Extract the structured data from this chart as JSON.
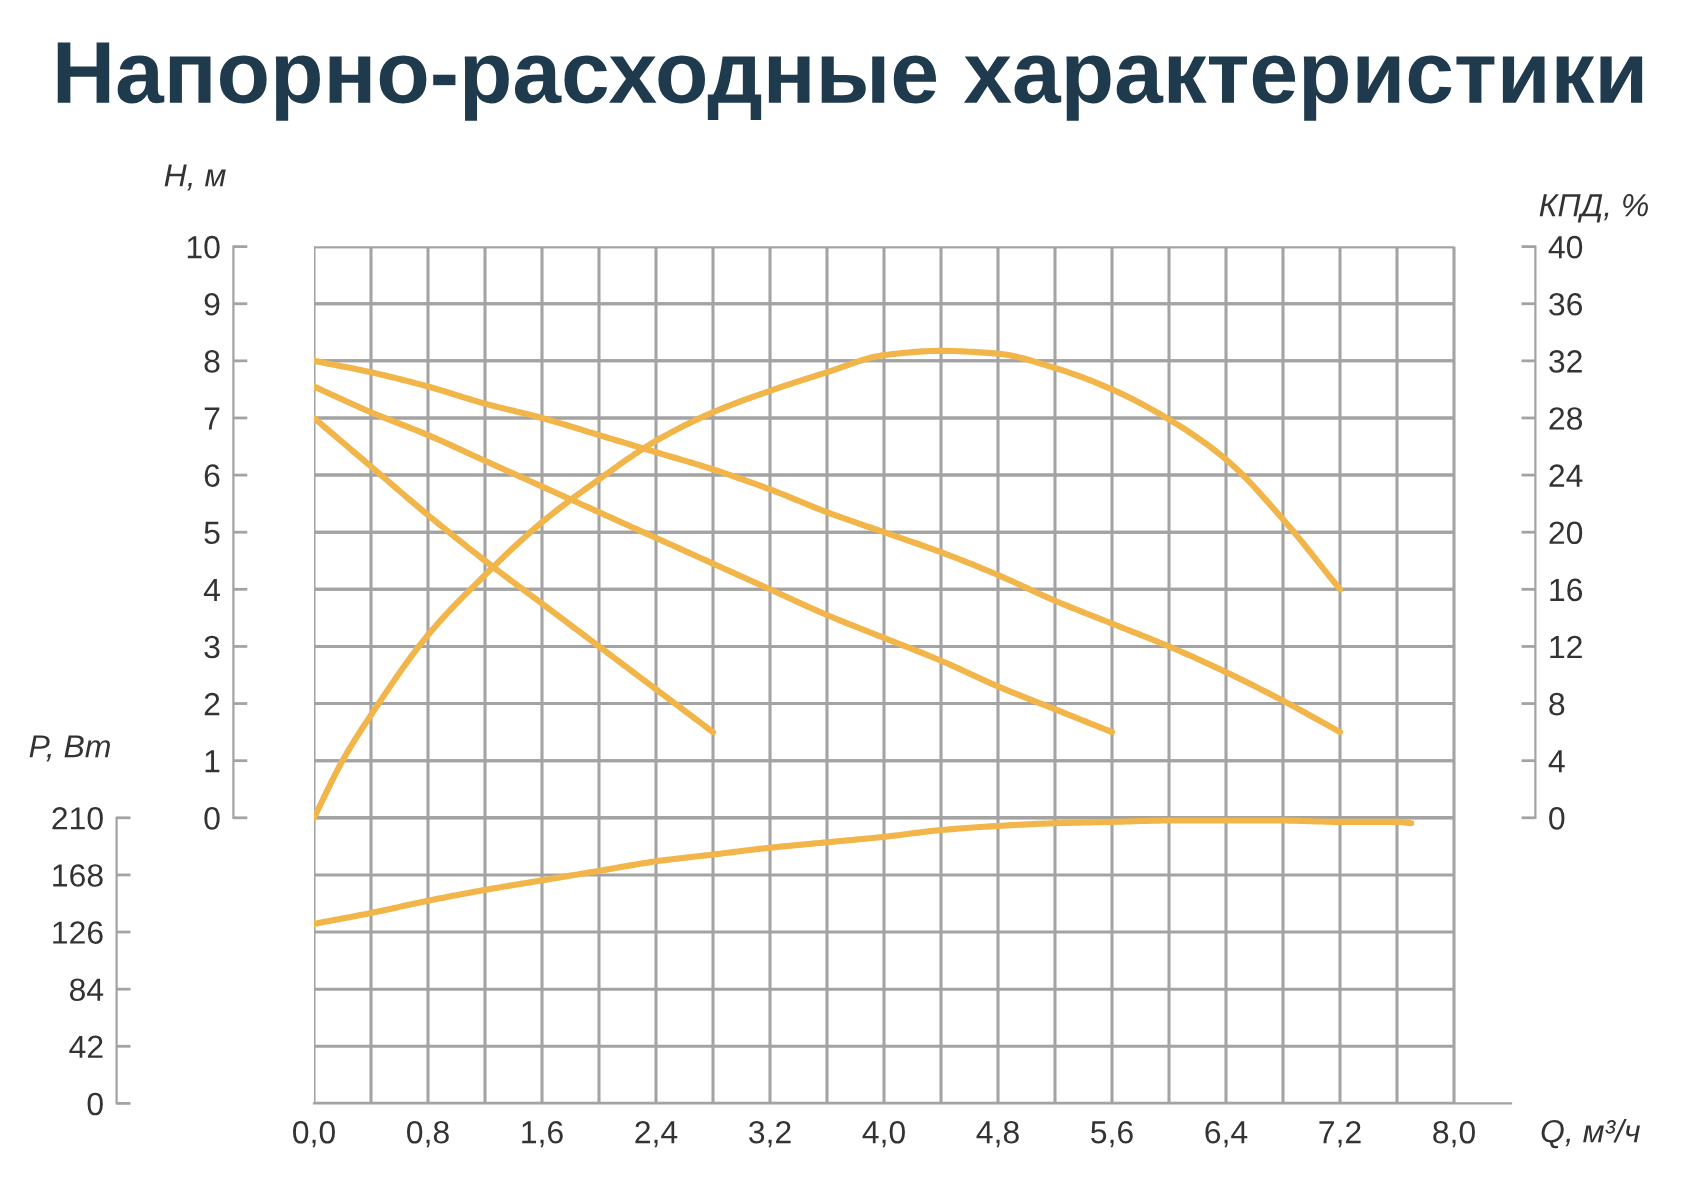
{
  "chart_data": {
    "type": "line",
    "title": "Напорно-расходные характеристики",
    "xlabel": "Q, м³/ч",
    "ylabel": "H, м",
    "y2label": "КПД, %",
    "y3label": "P, Вт",
    "xlim": [
      0,
      8.4
    ],
    "xticks": [
      {
        "value": 0,
        "label": "0,0"
      },
      {
        "value": 0.4,
        "label": null
      },
      {
        "value": 0.8,
        "label": "0,8"
      },
      {
        "value": 1.2,
        "label": null
      },
      {
        "value": 1.6,
        "label": "1,6"
      },
      {
        "value": 2.0,
        "label": null
      },
      {
        "value": 2.4,
        "label": "2,4"
      },
      {
        "value": 2.8,
        "label": null
      },
      {
        "value": 3.2,
        "label": "3,2"
      },
      {
        "value": 3.6,
        "label": null
      },
      {
        "value": 4.0,
        "label": "4,0"
      },
      {
        "value": 4.4,
        "label": null
      },
      {
        "value": 4.8,
        "label": "4,8"
      },
      {
        "value": 5.2,
        "label": null
      },
      {
        "value": 5.6,
        "label": "5,6"
      },
      {
        "value": 6.0,
        "label": null
      },
      {
        "value": 6.4,
        "label": "6,4"
      },
      {
        "value": 6.8,
        "label": null
      },
      {
        "value": 7.2,
        "label": "7,2"
      },
      {
        "value": 7.6,
        "label": null
      },
      {
        "value": 8.0,
        "label": "8,0"
      }
    ],
    "ylim": [
      -5,
      10
    ],
    "yticks": [
      0,
      1,
      2,
      3,
      4,
      5,
      6,
      7,
      8,
      9,
      10
    ],
    "y2lim": [
      -20,
      40
    ],
    "y2ticks": [
      0,
      4,
      8,
      12,
      16,
      20,
      24,
      28,
      32,
      36,
      40
    ],
    "y3lim": [
      0,
      630
    ],
    "y3ticks": [
      0,
      42,
      84,
      126,
      168,
      210
    ],
    "grid": true,
    "series": [
      {
        "color": "#f1b54a",
        "x": [
          0,
          0.4,
          0.8,
          1.2,
          1.6,
          2.0,
          2.4,
          2.8
        ],
        "values": [
          7.0,
          6.15,
          5.3,
          4.5,
          3.75,
          3.0,
          2.25,
          1.5
        ]
      },
      {
        "color": "#f1b54a",
        "x": [
          0,
          0.4,
          0.8,
          1.2,
          1.6,
          2.0,
          2.4,
          2.8,
          3.2,
          3.6,
          4.0,
          4.4,
          4.8,
          5.2,
          5.6
        ],
        "values": [
          7.55,
          7.1,
          6.7,
          6.25,
          5.8,
          5.35,
          4.9,
          4.45,
          4.0,
          3.55,
          3.15,
          2.75,
          2.3,
          1.9,
          1.5
        ]
      },
      {
        "color": "#f1b54a",
        "x": [
          0,
          0.4,
          0.8,
          1.2,
          1.6,
          2.0,
          2.4,
          2.8,
          3.2,
          3.6,
          4.0,
          4.4,
          4.8,
          5.2,
          5.6,
          6.0,
          6.4,
          6.8,
          7.2
        ],
        "values": [
          8.0,
          7.8,
          7.55,
          7.25,
          7.0,
          6.7,
          6.4,
          6.1,
          5.75,
          5.35,
          5.0,
          4.65,
          4.25,
          3.8,
          3.4,
          3.0,
          2.55,
          2.05,
          1.5
        ]
      },
      {
        "color": "#f1b54a",
        "axis": "y2",
        "x": [
          0,
          0.2,
          0.4,
          0.8,
          1.2,
          1.6,
          2.0,
          2.4,
          2.8,
          3.2,
          3.6,
          4.0,
          4.4,
          4.8,
          5.2,
          5.6,
          6.0,
          6.4,
          6.8,
          7.2
        ],
        "values": [
          0,
          4.0,
          7.2,
          12.8,
          17.0,
          20.7,
          23.7,
          26.4,
          28.4,
          29.9,
          31.2,
          32.4,
          32.7,
          32.5,
          31.5,
          30.0,
          27.9,
          25.1,
          20.9,
          16.0
        ]
      },
      {
        "color": "#f1b54a",
        "axis": "y3",
        "x": [
          0,
          0.4,
          0.8,
          1.2,
          1.6,
          2.0,
          2.4,
          2.8,
          3.2,
          3.6,
          4.0,
          4.4,
          4.8,
          5.2,
          5.6,
          6.0,
          6.4,
          6.8,
          7.2,
          7.6,
          7.7
        ],
        "values": [
          132,
          140,
          149,
          157,
          164,
          171,
          178,
          183,
          188,
          192,
          196,
          201,
          204,
          206,
          207,
          208,
          208,
          208,
          207,
          207,
          206
        ]
      }
    ]
  }
}
